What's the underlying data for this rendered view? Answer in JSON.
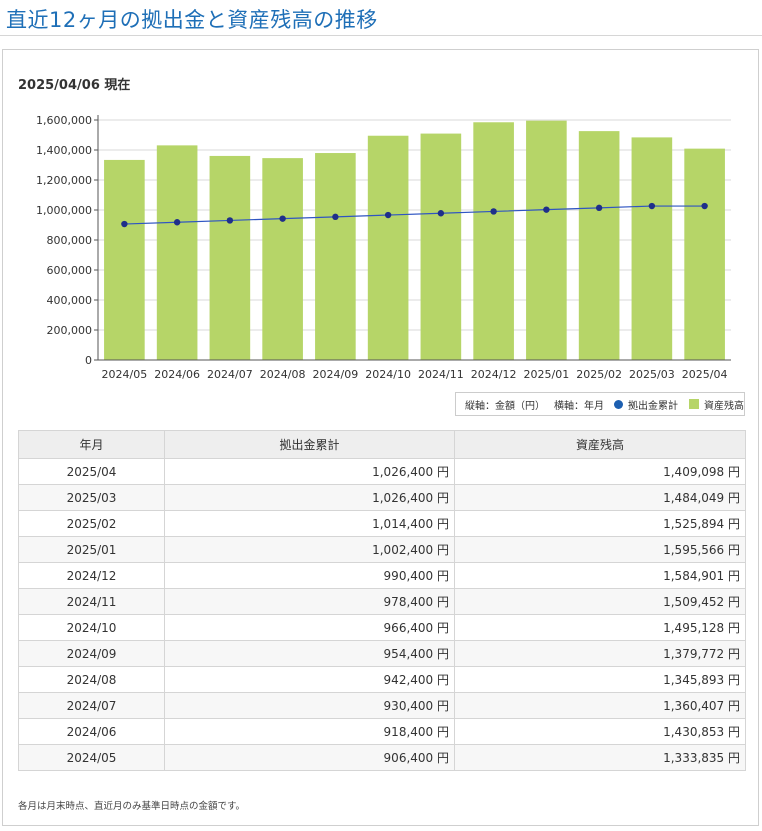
{
  "page": {
    "title": "直近12ヶ月の拠出金と資産残高の推移",
    "as_of": "2025/04/06 現在",
    "footnote": "各月は月末時点、直近月のみ基準日時点の金額です。"
  },
  "legend": {
    "axis_note_y": "縦軸：金額（円）",
    "axis_note_x": "横軸：年月",
    "line_label": "拠出金累計",
    "bar_label": "資産残高"
  },
  "colors": {
    "bar": "#b6d568",
    "line": "#2f55c2",
    "marker": "#1f2f8a",
    "title": "#1e6fb7",
    "grid": "#d9d9d9"
  },
  "chart_data": {
    "type": "bar",
    "categories": [
      "2024/05",
      "2024/06",
      "2024/07",
      "2024/08",
      "2024/09",
      "2024/10",
      "2024/11",
      "2024/12",
      "2025/01",
      "2025/02",
      "2025/03",
      "2025/04"
    ],
    "series": [
      {
        "name": "資産残高",
        "type": "bar",
        "values": [
          1333835,
          1430853,
          1360407,
          1345893,
          1379772,
          1495128,
          1509452,
          1584901,
          1595566,
          1525894,
          1484049,
          1409098
        ]
      },
      {
        "name": "拠出金累計",
        "type": "line",
        "values": [
          906400,
          918400,
          930400,
          942400,
          954400,
          966400,
          978400,
          990400,
          1002400,
          1014400,
          1026400,
          1026400
        ]
      }
    ],
    "y_ticks": [
      "0",
      "200,000",
      "400,000",
      "600,000",
      "800,000",
      "1,000,000",
      "1,200,000",
      "1,400,000",
      "1,600,000"
    ],
    "ylim": [
      0,
      1600000
    ],
    "grid": true,
    "legend_position": "bottom-right"
  },
  "table": {
    "headers": [
      "年月",
      "拠出金累計",
      "資産残高"
    ],
    "rows": [
      {
        "month": "2025/04",
        "contrib": "1,026,400 円",
        "assets": "1,409,098 円"
      },
      {
        "month": "2025/03",
        "contrib": "1,026,400 円",
        "assets": "1,484,049 円"
      },
      {
        "month": "2025/02",
        "contrib": "1,014,400 円",
        "assets": "1,525,894 円"
      },
      {
        "month": "2025/01",
        "contrib": "1,002,400 円",
        "assets": "1,595,566 円"
      },
      {
        "month": "2024/12",
        "contrib": "990,400 円",
        "assets": "1,584,901 円"
      },
      {
        "month": "2024/11",
        "contrib": "978,400 円",
        "assets": "1,509,452 円"
      },
      {
        "month": "2024/10",
        "contrib": "966,400 円",
        "assets": "1,495,128 円"
      },
      {
        "month": "2024/09",
        "contrib": "954,400 円",
        "assets": "1,379,772 円"
      },
      {
        "month": "2024/08",
        "contrib": "942,400 円",
        "assets": "1,345,893 円"
      },
      {
        "month": "2024/07",
        "contrib": "930,400 円",
        "assets": "1,360,407 円"
      },
      {
        "month": "2024/06",
        "contrib": "918,400 円",
        "assets": "1,430,853 円"
      },
      {
        "month": "2024/05",
        "contrib": "906,400 円",
        "assets": "1,333,835 円"
      }
    ]
  }
}
